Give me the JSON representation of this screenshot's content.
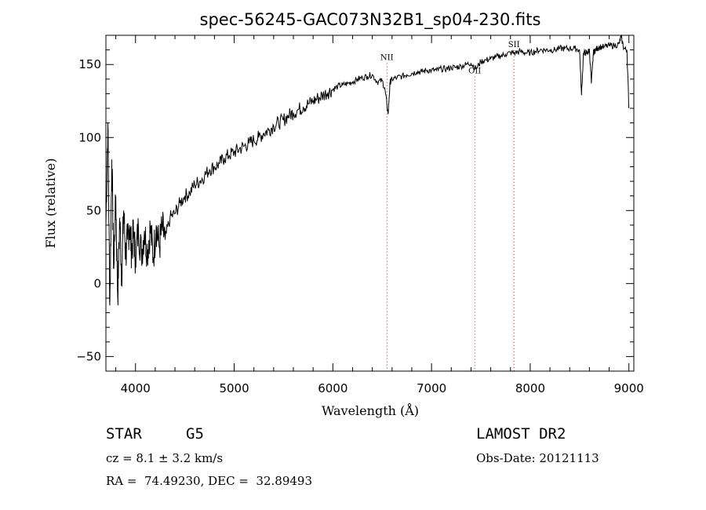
{
  "chart_data": {
    "type": "line",
    "title": "spec-56245-GAC073N32B1_sp04-230.fits",
    "xlabel": "Wavelength (Å)",
    "ylabel": "Flux (relative)",
    "xlim": [
      3700,
      9050
    ],
    "ylim": [
      -60,
      170
    ],
    "xticks": [
      4000,
      5000,
      6000,
      7000,
      8000,
      9000
    ],
    "yticks": [
      -50,
      0,
      50,
      100,
      150
    ],
    "grid": false,
    "series": [
      {
        "values_x": [
          3700,
          3720,
          3740,
          3760,
          3780,
          3800,
          3820,
          3840,
          3860,
          3880,
          3900,
          3920,
          3940,
          3960,
          3980,
          4000,
          4030,
          4060,
          4090,
          4120,
          4150,
          4180,
          4210,
          4240,
          4270,
          4300,
          4350,
          4400,
          4450,
          4500,
          4550,
          4600,
          4650,
          4700,
          4750,
          4800,
          4850,
          4900,
          4950,
          5000,
          5050,
          5100,
          5150,
          5200,
          5250,
          5300,
          5350,
          5400,
          5450,
          5500,
          5550,
          5600,
          5650,
          5700,
          5750,
          5800,
          5850,
          5900,
          5950,
          6000,
          6050,
          6100,
          6150,
          6200,
          6250,
          6300,
          6350,
          6400,
          6450,
          6500,
          6530,
          6560,
          6580,
          6600,
          6650,
          6700,
          6750,
          6800,
          6850,
          6900,
          6950,
          7000,
          7050,
          7100,
          7150,
          7200,
          7250,
          7300,
          7350,
          7400,
          7450,
          7500,
          7550,
          7600,
          7650,
          7700,
          7750,
          7800,
          7850,
          7900,
          7950,
          8000,
          8050,
          8100,
          8150,
          8200,
          8250,
          8300,
          8350,
          8400,
          8450,
          8500,
          8520,
          8540,
          8560,
          8580,
          8600,
          8620,
          8640,
          8660,
          8680,
          8700,
          8750,
          8800,
          8850,
          8900,
          8920,
          8950,
          8980,
          9000
        ],
        "values_y": [
          40,
          110,
          -15,
          85,
          10,
          60,
          -10,
          45,
          5,
          50,
          20,
          30,
          40,
          22,
          35,
          18,
          38,
          20,
          36,
          22,
          38,
          18,
          40,
          25,
          38,
          30,
          45,
          48,
          55,
          60,
          62,
          68,
          70,
          74,
          78,
          80,
          82,
          86,
          88,
          90,
          92,
          94,
          96,
          98,
          100,
          103,
          105,
          108,
          110,
          112,
          115,
          117,
          119,
          121,
          123,
          125,
          127,
          129,
          131,
          133,
          135,
          136,
          137,
          138,
          140,
          141,
          142,
          143,
          138,
          139,
          132,
          116,
          138,
          140,
          141,
          142,
          143,
          144,
          145,
          145,
          146,
          146,
          146,
          147,
          147,
          148,
          148,
          149,
          150,
          151,
          147,
          152,
          153,
          154,
          155,
          156,
          157,
          158,
          158,
          159,
          158,
          158,
          159,
          160,
          160,
          160,
          160,
          161,
          161,
          161,
          161,
          160,
          129,
          158,
          158,
          158,
          160,
          137,
          158,
          160,
          161,
          162,
          162,
          163,
          163,
          164,
          169,
          161,
          160,
          120
        ]
      }
    ],
    "lines": [
      {
        "label": "NII",
        "x": 6548,
        "label_y": 153
      },
      {
        "label": "OII",
        "x": 7438,
        "label_y": 144
      },
      {
        "label": "SII",
        "x": 7835,
        "label_y": 162
      }
    ]
  },
  "info": {
    "object_class": "STAR",
    "subclass": "G5",
    "survey": "LAMOST DR2",
    "cz": "cz = 8.1 ± 3.2 km/s",
    "obs_date": "Obs-Date: 20121113",
    "coords": "RA =  74.49230, DEC =  32.89493"
  }
}
